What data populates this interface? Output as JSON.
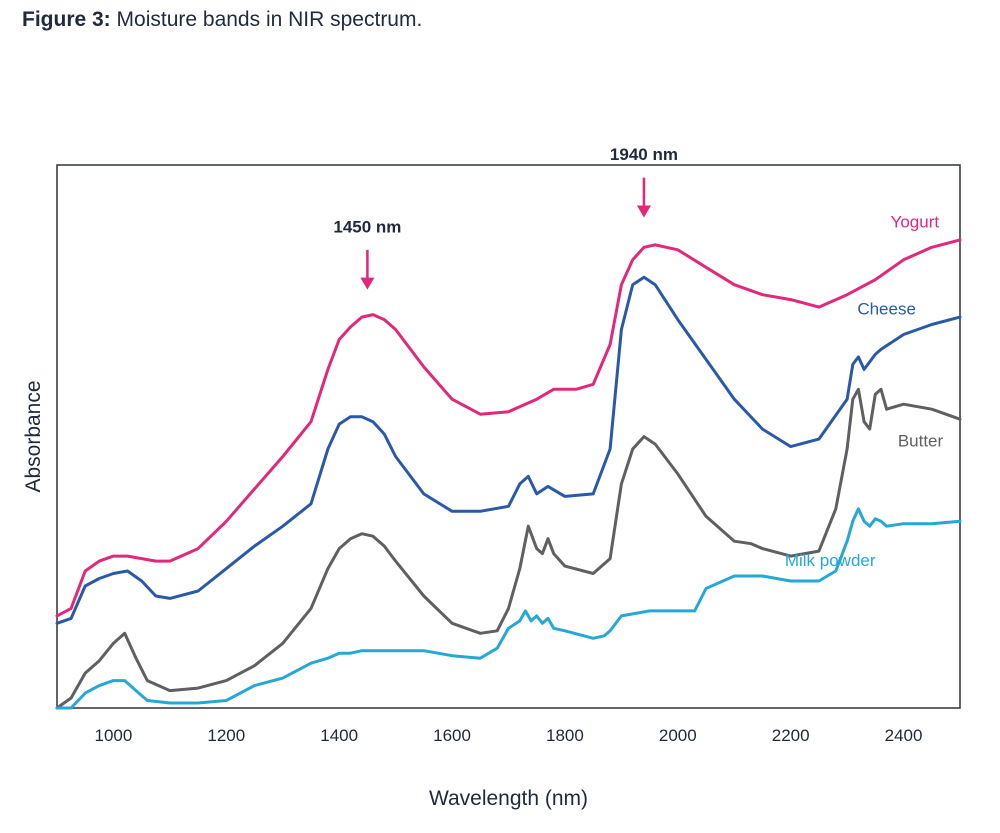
{
  "figure": {
    "label": "Figure 3:",
    "caption": "Moisture bands in NIR spectrum."
  },
  "chart_data": {
    "type": "line",
    "title": "Moisture bands in NIR spectrum.",
    "xlabel": "Wavelength (nm)",
    "ylabel": "Absorbance",
    "xlim": [
      900,
      2500
    ],
    "ylim": [
      0,
      1
    ],
    "grid": false,
    "y_ticks_shown": false,
    "x_ticks": [
      1000,
      1200,
      1400,
      1600,
      1800,
      2000,
      2200,
      2400
    ],
    "annotations": [
      {
        "text": "1450 nm",
        "x": 1450,
        "arrow_tip_y": 0.84,
        "arrow_base_y": 0.92,
        "text_y": 0.955,
        "color": "#e5247a"
      },
      {
        "text": "1940 nm",
        "x": 1940,
        "arrow_tip_y": 0.985,
        "arrow_base_y": 1.065,
        "text_y": 1.1,
        "color": "#e5247a"
      }
    ],
    "series": [
      {
        "name": "Yogurt",
        "color": "#e2287a",
        "label_pos": {
          "x": 2420,
          "y": 0.965
        },
        "x": [
          900,
          925,
          950,
          975,
          1000,
          1025,
          1050,
          1075,
          1100,
          1150,
          1200,
          1250,
          1300,
          1350,
          1380,
          1400,
          1420,
          1440,
          1460,
          1480,
          1500,
          1550,
          1600,
          1650,
          1700,
          1750,
          1780,
          1800,
          1820,
          1850,
          1880,
          1900,
          1920,
          1940,
          1960,
          2000,
          2050,
          2100,
          2150,
          2200,
          2250,
          2300,
          2350,
          2400,
          2450,
          2500
        ],
        "values": [
          0.185,
          0.2,
          0.275,
          0.295,
          0.305,
          0.305,
          0.3,
          0.295,
          0.295,
          0.32,
          0.375,
          0.44,
          0.505,
          0.575,
          0.68,
          0.74,
          0.765,
          0.785,
          0.79,
          0.78,
          0.76,
          0.685,
          0.62,
          0.59,
          0.595,
          0.62,
          0.64,
          0.64,
          0.64,
          0.65,
          0.73,
          0.85,
          0.9,
          0.925,
          0.93,
          0.92,
          0.885,
          0.85,
          0.83,
          0.82,
          0.805,
          0.83,
          0.86,
          0.9,
          0.925,
          0.94
        ]
      },
      {
        "name": "Cheese",
        "color": "#2a59a8",
        "label_pos": {
          "x": 2370,
          "y": 0.79
        },
        "x": [
          900,
          925,
          950,
          975,
          1000,
          1025,
          1050,
          1075,
          1100,
          1150,
          1200,
          1250,
          1300,
          1350,
          1380,
          1400,
          1420,
          1440,
          1460,
          1480,
          1500,
          1550,
          1600,
          1650,
          1700,
          1720,
          1735,
          1750,
          1770,
          1800,
          1850,
          1880,
          1900,
          1920,
          1940,
          1960,
          2000,
          2050,
          2100,
          2150,
          2200,
          2250,
          2300,
          2310,
          2320,
          2330,
          2340,
          2350,
          2360,
          2400,
          2450,
          2500
        ],
        "values": [
          0.17,
          0.18,
          0.245,
          0.26,
          0.27,
          0.275,
          0.255,
          0.225,
          0.22,
          0.235,
          0.28,
          0.325,
          0.365,
          0.41,
          0.52,
          0.57,
          0.585,
          0.585,
          0.575,
          0.55,
          0.505,
          0.43,
          0.395,
          0.395,
          0.405,
          0.45,
          0.465,
          0.43,
          0.445,
          0.425,
          0.43,
          0.52,
          0.76,
          0.85,
          0.865,
          0.85,
          0.78,
          0.7,
          0.62,
          0.56,
          0.525,
          0.54,
          0.62,
          0.69,
          0.705,
          0.68,
          0.695,
          0.71,
          0.72,
          0.75,
          0.77,
          0.785
        ]
      },
      {
        "name": "Butter",
        "color": "#5f5f64",
        "label_pos": {
          "x": 2430,
          "y": 0.525
        },
        "x": [
          900,
          925,
          950,
          975,
          1000,
          1020,
          1040,
          1060,
          1100,
          1150,
          1200,
          1250,
          1300,
          1350,
          1380,
          1400,
          1420,
          1440,
          1460,
          1480,
          1500,
          1550,
          1600,
          1650,
          1680,
          1700,
          1720,
          1735,
          1750,
          1760,
          1770,
          1780,
          1800,
          1850,
          1880,
          1900,
          1920,
          1940,
          1960,
          2000,
          2050,
          2100,
          2130,
          2150,
          2200,
          2250,
          2280,
          2300,
          2310,
          2320,
          2330,
          2340,
          2350,
          2360,
          2370,
          2400,
          2450,
          2500
        ],
        "values": [
          0.0,
          0.02,
          0.07,
          0.095,
          0.13,
          0.15,
          0.1,
          0.055,
          0.035,
          0.04,
          0.055,
          0.085,
          0.13,
          0.2,
          0.28,
          0.32,
          0.34,
          0.35,
          0.345,
          0.325,
          0.295,
          0.225,
          0.17,
          0.15,
          0.155,
          0.2,
          0.28,
          0.365,
          0.32,
          0.31,
          0.34,
          0.31,
          0.285,
          0.27,
          0.3,
          0.45,
          0.52,
          0.545,
          0.53,
          0.47,
          0.385,
          0.335,
          0.33,
          0.32,
          0.305,
          0.315,
          0.4,
          0.52,
          0.62,
          0.64,
          0.575,
          0.56,
          0.63,
          0.64,
          0.6,
          0.61,
          0.6,
          0.58
        ]
      },
      {
        "name": "Milk powder",
        "color": "#25a8d6",
        "label_pos": {
          "x": 2270,
          "y": 0.285
        },
        "x": [
          900,
          925,
          950,
          975,
          1000,
          1020,
          1040,
          1060,
          1100,
          1150,
          1200,
          1250,
          1300,
          1350,
          1380,
          1400,
          1420,
          1440,
          1460,
          1500,
          1550,
          1600,
          1650,
          1680,
          1700,
          1720,
          1730,
          1740,
          1750,
          1760,
          1770,
          1780,
          1800,
          1850,
          1870,
          1880,
          1900,
          1950,
          2000,
          2030,
          2050,
          2080,
          2100,
          2150,
          2200,
          2250,
          2280,
          2300,
          2310,
          2320,
          2330,
          2340,
          2350,
          2360,
          2370,
          2400,
          2450,
          2500
        ],
        "values": [
          0.0,
          0.0,
          0.03,
          0.045,
          0.055,
          0.055,
          0.035,
          0.015,
          0.01,
          0.01,
          0.015,
          0.045,
          0.06,
          0.09,
          0.1,
          0.11,
          0.11,
          0.115,
          0.115,
          0.115,
          0.115,
          0.105,
          0.1,
          0.12,
          0.16,
          0.175,
          0.195,
          0.175,
          0.185,
          0.17,
          0.18,
          0.16,
          0.155,
          0.14,
          0.145,
          0.155,
          0.185,
          0.195,
          0.195,
          0.195,
          0.24,
          0.255,
          0.265,
          0.265,
          0.255,
          0.255,
          0.275,
          0.335,
          0.375,
          0.4,
          0.375,
          0.365,
          0.38,
          0.375,
          0.365,
          0.37,
          0.37,
          0.375
        ]
      }
    ]
  }
}
